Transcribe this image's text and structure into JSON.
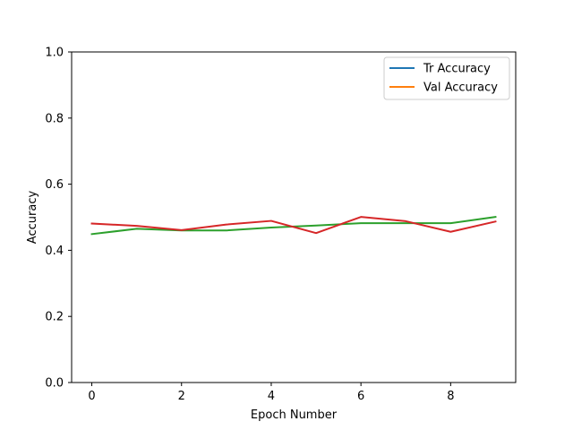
{
  "chart_data": {
    "type": "line",
    "title": "",
    "xlabel": "Epoch Number",
    "ylabel": "Accuracy",
    "xlim": [
      -0.45,
      9.45
    ],
    "ylim": [
      0.0,
      1.0
    ],
    "x_ticks": [
      0,
      2,
      4,
      6,
      8
    ],
    "x_tick_labels": [
      "0",
      "2",
      "4",
      "6",
      "8"
    ],
    "y_ticks": [
      0.0,
      0.2,
      0.4,
      0.6,
      0.8,
      1.0
    ],
    "y_tick_labels": [
      "0.0",
      "0.2",
      "0.4",
      "0.6",
      "0.8",
      "1.0"
    ],
    "grid": false,
    "legend_position": "top-right",
    "legend": [
      {
        "label": "Tr Accuracy",
        "color": "#1f77b4"
      },
      {
        "label": "Val Accuracy",
        "color": "#ff7f0e"
      }
    ],
    "x": [
      0,
      1,
      2,
      3,
      4,
      5,
      6,
      7,
      8,
      9
    ],
    "series": [
      {
        "name": "green line",
        "color": "#2ca02c",
        "values": [
          0.449,
          0.465,
          0.46,
          0.46,
          0.469,
          0.475,
          0.482,
          0.482,
          0.482,
          0.501
        ]
      },
      {
        "name": "red line",
        "color": "#d62728",
        "values": [
          0.481,
          0.474,
          0.461,
          0.478,
          0.489,
          0.452,
          0.501,
          0.488,
          0.456,
          0.487
        ]
      }
    ]
  }
}
